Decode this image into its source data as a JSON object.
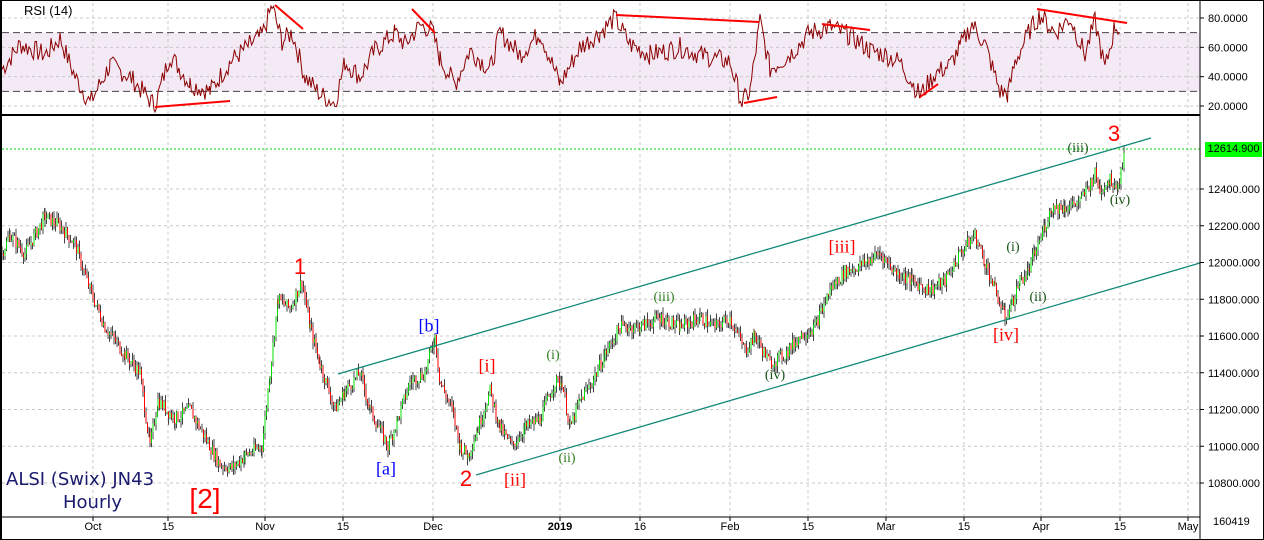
{
  "chart_data": [
    {
      "type": "line",
      "title": "RSI (14)",
      "panel": "top",
      "ylim": [
        10,
        90
      ],
      "y_ticks": [
        "80.0000",
        "60.0000",
        "40.0000",
        "20.0000"
      ],
      "overbought": 70,
      "oversold": 30,
      "series": [
        {
          "name": "RSI (14)",
          "color": "#8b0000",
          "x": [
            "Sep 24",
            "Oct 1",
            "Oct 8",
            "Oct 12",
            "Oct 20",
            "Oct 26",
            "Nov 1",
            "Nov 5",
            "Nov 9",
            "Nov 15",
            "Nov 22",
            "Nov 28",
            "Dec 1",
            "Dec 7",
            "Dec 14",
            "Dec 21",
            "Jan 1",
            "Jan 8",
            "Jan 14",
            "Jan 22",
            "Feb 1",
            "Feb 6",
            "Feb 12",
            "Feb 20",
            "Feb 26",
            "Mar 4",
            "Mar 10",
            "Mar 15",
            "Mar 22",
            "Mar 28",
            "Apr 2",
            "Apr 8",
            "Apr 14",
            "Apr 16"
          ],
          "values": [
            45,
            62,
            40,
            22,
            48,
            28,
            68,
            86,
            60,
            30,
            52,
            40,
            72,
            38,
            58,
            50,
            55,
            70,
            78,
            62,
            55,
            75,
            25,
            58,
            72,
            68,
            30,
            62,
            68,
            28,
            78,
            80,
            50,
            72
          ]
        }
      ],
      "annotations": [
        {
          "type": "divergence-line",
          "from": [
            "Oct 12",
            21
          ],
          "to": [
            "Oct 26",
            25
          ],
          "color": "#ff0000"
        },
        {
          "type": "divergence-line",
          "from": [
            "Nov 4",
            90
          ],
          "to": [
            "Nov 8",
            73
          ],
          "color": "#ff0000"
        },
        {
          "type": "divergence-line",
          "from": [
            "Nov 27",
            73
          ],
          "to": [
            "Dec 1",
            70
          ],
          "color": "#ff0000"
        },
        {
          "type": "divergence-line",
          "from": [
            "Jan 10",
            82
          ],
          "to": [
            "Feb 6",
            77
          ],
          "color": "#ff0000"
        },
        {
          "type": "divergence-line",
          "from": [
            "Feb 6",
            20
          ],
          "to": [
            "Feb 12",
            25
          ],
          "color": "#ff0000"
        },
        {
          "type": "divergence-line",
          "from": [
            "Feb 19",
            77
          ],
          "to": [
            "Feb 28",
            73
          ],
          "color": "#ff0000"
        },
        {
          "type": "divergence-line",
          "from": [
            "Mar 9",
            25
          ],
          "to": [
            "Mar 11",
            33
          ],
          "color": "#ff0000"
        },
        {
          "type": "divergence-line",
          "from": [
            "Apr 1",
            86
          ],
          "to": [
            "Apr 16",
            77
          ],
          "color": "#ff0000"
        }
      ]
    },
    {
      "type": "candlestick",
      "title": "ALSI (Swix) JN43 Hourly",
      "panel": "main",
      "ylim": [
        10650,
        12700
      ],
      "y_ticks": [
        "12400.000",
        "12200.000",
        "12000.000",
        "11800.000",
        "11600.000",
        "11400.000",
        "11200.000",
        "11000.000",
        "10800.000"
      ],
      "x_ticks": [
        "Oct",
        "15",
        "Nov",
        "15",
        "Dec",
        "2019",
        "16",
        "Feb",
        "15",
        "Mar",
        "15",
        "Apr",
        "15",
        "May"
      ],
      "last_price": 12614.9,
      "series": [
        {
          "name": "ALSI JN43 approx close path",
          "x": [
            "Sep 24",
            "Sep 28",
            "Oct 3",
            "Oct 8",
            "Oct 12",
            "Oct 15",
            "Oct 19",
            "Oct 24",
            "Oct 26",
            "Oct 30",
            "Nov 2",
            "Nov 5",
            "Nov 8",
            "Nov 12",
            "Nov 15",
            "Nov 20",
            "Nov 23",
            "Nov 27",
            "Dec 1",
            "Dec 4",
            "Dec 7",
            "Dec 11",
            "Dec 14",
            "Dec 18",
            "Dec 21",
            "Jan 2",
            "Jan 8",
            "Jan 12",
            "Jan 18",
            "Jan 24",
            "Jan 30",
            "Feb 4",
            "Feb 8",
            "Feb 13",
            "Feb 19",
            "Feb 25",
            "Mar 1",
            "Mar 6",
            "Mar 12",
            "Mar 15",
            "Mar 20",
            "Mar 22",
            "Mar 26",
            "Mar 29",
            "Apr 3",
            "Apr 8",
            "Apr 11",
            "Apr 14",
            "Apr 16"
          ],
          "values": [
            12050,
            12250,
            12050,
            11700,
            11000,
            11250,
            11100,
            10800,
            10900,
            10950,
            11700,
            11900,
            11700,
            11350,
            11100,
            11300,
            10950,
            11400,
            11550,
            11250,
            10900,
            11200,
            11350,
            11050,
            11100,
            11400,
            11300,
            11650,
            11650,
            11700,
            11600,
            11750,
            11500,
            11550,
            11700,
            11950,
            12050,
            11950,
            11850,
            11900,
            12150,
            11750,
            11700,
            11950,
            12200,
            12350,
            12500,
            12450,
            12615
          ]
        }
      ],
      "channel": {
        "upper": {
          "from": [
            "Nov 14",
            11400
          ],
          "to": [
            "Apr 21",
            12660
          ]
        },
        "lower": {
          "from": [
            "Dec 4",
            10860
          ],
          "to": [
            "Apr 30",
            12000
          ]
        }
      },
      "wave_labels": [
        {
          "text": "1",
          "at": [
            "Nov 6",
            11930
          ],
          "color": "#ff0000"
        },
        {
          "text": "[2]",
          "at": [
            "Oct 20",
            10720
          ],
          "color": "#ff0000"
        },
        {
          "text": "[a]",
          "at": [
            "Nov 23",
            10900
          ],
          "color": "#0000ff"
        },
        {
          "text": "[b]",
          "at": [
            "Nov 29",
            11650
          ],
          "color": "#0000ff"
        },
        {
          "text": "2",
          "at": [
            "Dec 5",
            10860
          ],
          "color": "#ff0000"
        },
        {
          "text": "[i]",
          "at": [
            "Dec 7",
            11480
          ],
          "color": "#ff0000"
        },
        {
          "text": "[ii]",
          "at": [
            "Dec 13",
            10860
          ],
          "color": "#ff0000"
        },
        {
          "text": "(i)",
          "at": [
            "Dec 24",
            11520
          ],
          "color": "#2e7d1e"
        },
        {
          "text": "(ii)",
          "at": [
            "Dec 31",
            10920
          ],
          "color": "#2e7d1e"
        },
        {
          "text": "(iii)",
          "at": [
            "Jan 17",
            11740
          ],
          "color": "#2e7d1e"
        },
        {
          "text": "(iv)",
          "at": [
            "Feb 11",
            11400
          ],
          "color": "#135213"
        },
        {
          "text": "[iii]",
          "at": [
            "Feb 25",
            12080
          ],
          "color": "#ff0000"
        },
        {
          "text": "[iv]",
          "at": [
            "Mar 22",
            11630
          ],
          "color": "#ff0000"
        },
        {
          "text": "(i)",
          "at": [
            "Mar 26",
            12080
          ],
          "color": "#135213"
        },
        {
          "text": "(ii)",
          "at": [
            "Mar 29",
            11790
          ],
          "color": "#135213"
        },
        {
          "text": "(iii)",
          "at": [
            "Apr 7",
            12600
          ],
          "color": "#135213"
        },
        {
          "text": "3",
          "at": [
            "Apr 15",
            12690
          ],
          "color": "#ff0000"
        },
        {
          "text": "(iv)",
          "at": [
            "Apr 14",
            12340
          ],
          "color": "#135213"
        }
      ]
    }
  ],
  "rsi_panel": {
    "title": "RSI (14)",
    "ticks": [
      {
        "label": "80.0000",
        "value": 80
      },
      {
        "label": "60.0000",
        "value": 60
      },
      {
        "label": "40.0000",
        "value": 40
      },
      {
        "label": "20.0000",
        "value": 20
      }
    ]
  },
  "price_panel": {
    "title_line1": "ALSI (Swix) JN43",
    "title_line2": "Hourly",
    "last_price_label": "12614.900",
    "ticks": [
      {
        "label": "12400.000",
        "value": 12400
      },
      {
        "label": "12200.000",
        "value": 12200
      },
      {
        "label": "12000.000",
        "value": 12000
      },
      {
        "label": "11800.000",
        "value": 11800
      },
      {
        "label": "11600.000",
        "value": 11600
      },
      {
        "label": "11400.000",
        "value": 11400
      },
      {
        "label": "11200.000",
        "value": 11200
      },
      {
        "label": "11000.000",
        "value": 11000
      },
      {
        "label": "10800.000",
        "value": 10800
      }
    ],
    "waves": {
      "w1": "1",
      "w2big": "[2]",
      "wa": "[a]",
      "wb": "[b]",
      "w2": "2",
      "wi": "[i]",
      "wii": "[ii]",
      "c_i_1": "(i)",
      "c_ii_1": "(ii)",
      "c_iii_1": "(iii)",
      "c_iv_1": "(iv)",
      "wiii": "[iii]",
      "wiv": "[iv]",
      "c_i_2": "(i)",
      "c_ii_2": "(ii)",
      "c_iii_2": "(iii)",
      "w3": "3",
      "c_iv_2": "(iv)"
    }
  },
  "x_axis": {
    "ticks": [
      {
        "label": "Oct",
        "x": 93
      },
      {
        "label": "15",
        "x": 168
      },
      {
        "label": "Nov",
        "x": 265
      },
      {
        "label": "15",
        "x": 343
      },
      {
        "label": "Dec",
        "x": 433
      },
      {
        "label": "2019",
        "x": 560
      },
      {
        "label": "16",
        "x": 640
      },
      {
        "label": "Feb",
        "x": 730
      },
      {
        "label": "15",
        "x": 808
      },
      {
        "label": "Mar",
        "x": 886
      },
      {
        "label": "15",
        "x": 964
      },
      {
        "label": "Apr",
        "x": 1041
      },
      {
        "label": "15",
        "x": 1120
      },
      {
        "label": "May",
        "x": 1188
      }
    ]
  },
  "footer": {
    "code": "160419"
  },
  "colors": {
    "rsi_line": "#8b0000",
    "rsi_band": "#f4eaf6",
    "divergence": "#ff0000",
    "channel": "#13897a",
    "up_bar": "#00e000",
    "down_bar": "#ff0000",
    "wick": "#444444",
    "last_price_bg": "#00ff00",
    "grid": "#c8c8c8"
  }
}
